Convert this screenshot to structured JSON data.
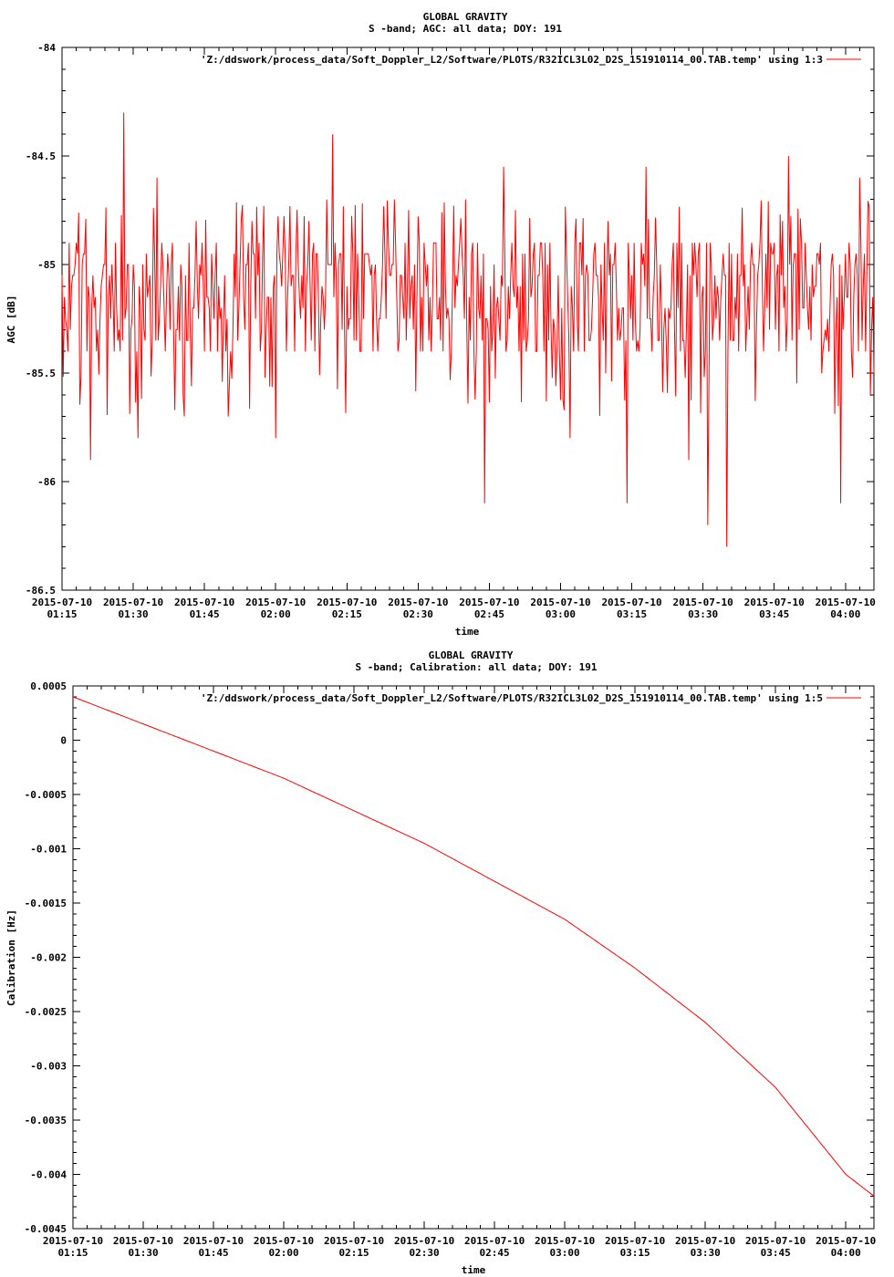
{
  "chart_data": [
    {
      "type": "line",
      "title": "GLOBAL GRAVITY",
      "subtitle": "S -band; AGC: all data; DOY: 191",
      "xlabel": "time",
      "ylabel": "AGC [dB]",
      "ylim": [
        -86.5,
        -84
      ],
      "yticks": [
        {
          "v": -84,
          "label": "-84"
        },
        {
          "v": -84.5,
          "label": "-84.5"
        },
        {
          "v": -85,
          "label": "-85"
        },
        {
          "v": -85.5,
          "label": "-85.5"
        },
        {
          "v": -86,
          "label": "-86"
        },
        {
          "v": -86.5,
          "label": "-86.5"
        }
      ],
      "xlim": [
        "2015-07-10 01:15",
        "2015-07-10 04:06"
      ],
      "xticks": [
        {
          "v": "2015-07-10 01:15",
          "date": "2015-07-10",
          "time": "01:15"
        },
        {
          "v": "2015-07-10 01:30",
          "date": "2015-07-10",
          "time": "01:30"
        },
        {
          "v": "2015-07-10 01:45",
          "date": "2015-07-10",
          "time": "01:45"
        },
        {
          "v": "2015-07-10 02:00",
          "date": "2015-07-10",
          "time": "02:00"
        },
        {
          "v": "2015-07-10 02:15",
          "date": "2015-07-10",
          "time": "02:15"
        },
        {
          "v": "2015-07-10 02:30",
          "date": "2015-07-10",
          "time": "02:30"
        },
        {
          "v": "2015-07-10 02:45",
          "date": "2015-07-10",
          "time": "02:45"
        },
        {
          "v": "2015-07-10 03:00",
          "date": "2015-07-10",
          "time": "03:00"
        },
        {
          "v": "2015-07-10 03:15",
          "date": "2015-07-10",
          "time": "03:15"
        },
        {
          "v": "2015-07-10 03:30",
          "date": "2015-07-10",
          "time": "03:30"
        },
        {
          "v": "2015-07-10 03:45",
          "date": "2015-07-10",
          "time": "03:45"
        },
        {
          "v": "2015-07-10 04:00",
          "date": "2015-07-10",
          "time": "04:00"
        }
      ],
      "legend_position": "top-right",
      "series": [
        {
          "name": "'Z:/ddswork/process_data/Soft_Doppler_L2/Software/PLOTS/R32ICL3L02_D2S_151910114_00.TAB.temp' using 1:3",
          "color": "#ff0000",
          "points": [
            [
              "2015-07-10 01:15",
              -85.05
            ],
            [
              "2015-07-10 01:18",
              -84.9
            ],
            [
              "2015-07-10 01:21",
              -85.9
            ],
            [
              "2015-07-10 01:24",
              -85.0
            ],
            [
              "2015-07-10 01:27",
              -85.3
            ],
            [
              "2015-07-10 01:28",
              -84.3
            ],
            [
              "2015-07-10 01:31",
              -85.8
            ],
            [
              "2015-07-10 01:35",
              -84.6
            ],
            [
              "2015-07-10 01:40",
              -85.0
            ],
            [
              "2015-07-10 01:45",
              -85.4
            ],
            [
              "2015-07-10 01:50",
              -85.7
            ],
            [
              "2015-07-10 01:55",
              -84.8
            ],
            [
              "2015-07-10 02:00",
              -85.8
            ],
            [
              "2015-07-10 02:07",
              -84.8
            ],
            [
              "2015-07-10 02:12",
              -84.4
            ],
            [
              "2015-07-10 02:18",
              -85.4
            ],
            [
              "2015-07-10 02:25",
              -84.7
            ],
            [
              "2015-07-10 02:32",
              -85.0
            ],
            [
              "2015-07-10 02:40",
              -84.7
            ],
            [
              "2015-07-10 02:44",
              -86.1
            ],
            [
              "2015-07-10 02:48",
              -84.55
            ],
            [
              "2015-07-10 02:55",
              -85.4
            ],
            [
              "2015-07-10 03:02",
              -85.8
            ],
            [
              "2015-07-10 03:10",
              -84.8
            ],
            [
              "2015-07-10 03:14",
              -86.1
            ],
            [
              "2015-07-10 03:18",
              -84.55
            ],
            [
              "2015-07-10 03:27",
              -85.9
            ],
            [
              "2015-07-10 03:31",
              -86.2
            ],
            [
              "2015-07-10 03:35",
              -86.3
            ],
            [
              "2015-07-10 03:40",
              -85.0
            ],
            [
              "2015-07-10 03:48",
              -84.5
            ],
            [
              "2015-07-10 03:55",
              -85.5
            ],
            [
              "2015-07-10 03:59",
              -86.1
            ],
            [
              "2015-07-10 04:03",
              -84.6
            ],
            [
              "2015-07-10 04:06",
              -85.5
            ]
          ]
        }
      ]
    },
    {
      "type": "line",
      "title": "GLOBAL GRAVITY",
      "subtitle": "S -band; Calibration: all data; DOY: 191",
      "xlabel": "time",
      "ylabel": "Calibration [Hz]",
      "ylim": [
        -0.0045,
        0.0005
      ],
      "yticks": [
        {
          "v": 0.0005,
          "label": "0.0005"
        },
        {
          "v": 0,
          "label": "0"
        },
        {
          "v": -0.0005,
          "label": "-0.0005"
        },
        {
          "v": -0.001,
          "label": "-0.001"
        },
        {
          "v": -0.0015,
          "label": "-0.0015"
        },
        {
          "v": -0.002,
          "label": "-0.002"
        },
        {
          "v": -0.0025,
          "label": "-0.0025"
        },
        {
          "v": -0.003,
          "label": "-0.003"
        },
        {
          "v": -0.0035,
          "label": "-0.0035"
        },
        {
          "v": -0.004,
          "label": "-0.004"
        },
        {
          "v": -0.0045,
          "label": "-0.0045"
        }
      ],
      "xlim": [
        "2015-07-10 01:15",
        "2015-07-10 04:06"
      ],
      "xticks": [
        {
          "v": "2015-07-10 01:15",
          "date": "2015-07-10",
          "time": "01:15"
        },
        {
          "v": "2015-07-10 01:30",
          "date": "2015-07-10",
          "time": "01:30"
        },
        {
          "v": "2015-07-10 01:45",
          "date": "2015-07-10",
          "time": "01:45"
        },
        {
          "v": "2015-07-10 02:00",
          "date": "2015-07-10",
          "time": "02:00"
        },
        {
          "v": "2015-07-10 02:15",
          "date": "2015-07-10",
          "time": "02:15"
        },
        {
          "v": "2015-07-10 02:30",
          "date": "2015-07-10",
          "time": "02:30"
        },
        {
          "v": "2015-07-10 02:45",
          "date": "2015-07-10",
          "time": "02:45"
        },
        {
          "v": "2015-07-10 03:00",
          "date": "2015-07-10",
          "time": "03:00"
        },
        {
          "v": "2015-07-10 03:15",
          "date": "2015-07-10",
          "time": "03:15"
        },
        {
          "v": "2015-07-10 03:30",
          "date": "2015-07-10",
          "time": "03:30"
        },
        {
          "v": "2015-07-10 03:45",
          "date": "2015-07-10",
          "time": "03:45"
        },
        {
          "v": "2015-07-10 04:00",
          "date": "2015-07-10",
          "time": "04:00"
        }
      ],
      "legend_position": "top-right",
      "series": [
        {
          "name": "'Z:/ddswork/process_data/Soft_Doppler_L2/Software/PLOTS/R32ICL3L02_D2S_151910114_00.TAB.temp' using 1:5",
          "color": "#ff0000",
          "points": [
            [
              "2015-07-10 01:15",
              0.0004
            ],
            [
              "2015-07-10 01:30",
              0.00015
            ],
            [
              "2015-07-10 01:45",
              -0.0001
            ],
            [
              "2015-07-10 02:00",
              -0.00035
            ],
            [
              "2015-07-10 02:15",
              -0.00065
            ],
            [
              "2015-07-10 02:30",
              -0.00095
            ],
            [
              "2015-07-10 02:45",
              -0.0013
            ],
            [
              "2015-07-10 03:00",
              -0.00165
            ],
            [
              "2015-07-10 03:15",
              -0.0021
            ],
            [
              "2015-07-10 03:30",
              -0.0026
            ],
            [
              "2015-07-10 03:45",
              -0.0032
            ],
            [
              "2015-07-10 04:00",
              -0.004
            ],
            [
              "2015-07-10 04:06",
              -0.0042
            ]
          ]
        }
      ]
    }
  ]
}
